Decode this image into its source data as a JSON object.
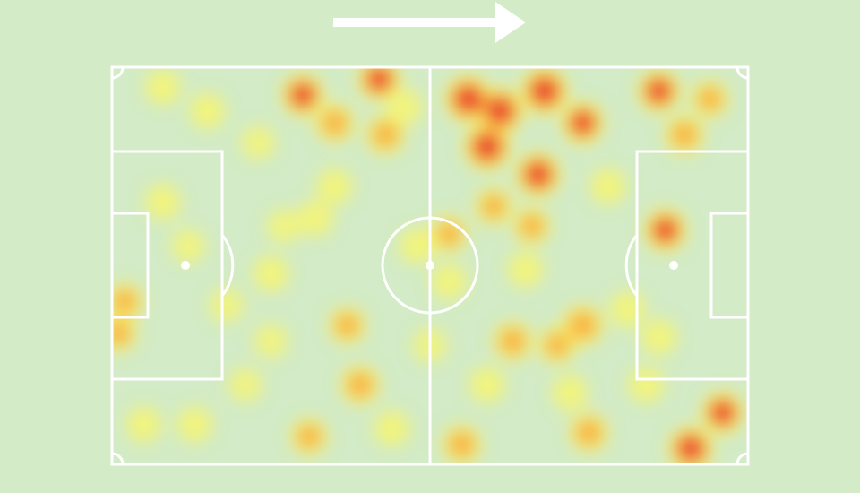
{
  "chart_data": {
    "type": "heatmap",
    "title": "",
    "attack_direction": "right",
    "xlim": [
      0,
      100
    ],
    "ylim": [
      0,
      100
    ],
    "grid": false,
    "colors": {
      "background": "#d3ebc6",
      "lines": "#ffffff",
      "low": "#fff75a",
      "mid": "#f9a33a",
      "high": "#e8352f"
    },
    "points": [
      {
        "x": 30,
        "y": 7,
        "v": 0.8
      },
      {
        "x": 42,
        "y": 3,
        "v": 0.8
      },
      {
        "x": 43,
        "y": 17,
        "v": 0.6
      },
      {
        "x": 35,
        "y": 14,
        "v": 0.6
      },
      {
        "x": 56,
        "y": 8,
        "v": 1.0
      },
      {
        "x": 61,
        "y": 11,
        "v": 1.0
      },
      {
        "x": 59,
        "y": 20,
        "v": 1.0
      },
      {
        "x": 68,
        "y": 6,
        "v": 1.0
      },
      {
        "x": 74,
        "y": 14,
        "v": 0.8
      },
      {
        "x": 67,
        "y": 27,
        "v": 0.9
      },
      {
        "x": 86,
        "y": 6,
        "v": 0.8
      },
      {
        "x": 90,
        "y": 17,
        "v": 0.6
      },
      {
        "x": 87,
        "y": 41,
        "v": 0.8
      },
      {
        "x": 94,
        "y": 8,
        "v": 0.5
      },
      {
        "x": 74,
        "y": 65,
        "v": 0.7
      },
      {
        "x": 63,
        "y": 69,
        "v": 0.6
      },
      {
        "x": 70,
        "y": 70,
        "v": 0.5
      },
      {
        "x": 39,
        "y": 80,
        "v": 0.6
      },
      {
        "x": 37,
        "y": 65,
        "v": 0.5
      },
      {
        "x": 91,
        "y": 96,
        "v": 0.9
      },
      {
        "x": 96,
        "y": 87,
        "v": 0.8
      },
      {
        "x": 55,
        "y": 95,
        "v": 0.6
      },
      {
        "x": 75,
        "y": 92,
        "v": 0.6
      },
      {
        "x": 2,
        "y": 59,
        "v": 0.5
      },
      {
        "x": 1,
        "y": 67,
        "v": 0.5
      },
      {
        "x": 8,
        "y": 34,
        "v": 0.4
      },
      {
        "x": 8,
        "y": 5,
        "v": 0.4
      },
      {
        "x": 25,
        "y": 52,
        "v": 0.4
      },
      {
        "x": 32,
        "y": 38,
        "v": 0.4
      },
      {
        "x": 53,
        "y": 42,
        "v": 0.5
      },
      {
        "x": 53,
        "y": 54,
        "v": 0.4
      },
      {
        "x": 13,
        "y": 90,
        "v": 0.4
      },
      {
        "x": 5,
        "y": 90,
        "v": 0.4
      },
      {
        "x": 31,
        "y": 93,
        "v": 0.5
      },
      {
        "x": 44,
        "y": 91,
        "v": 0.4
      },
      {
        "x": 59,
        "y": 80,
        "v": 0.4
      },
      {
        "x": 72,
        "y": 82,
        "v": 0.4
      },
      {
        "x": 15,
        "y": 11,
        "v": 0.4
      },
      {
        "x": 23,
        "y": 19,
        "v": 0.3
      },
      {
        "x": 35,
        "y": 30,
        "v": 0.4
      },
      {
        "x": 81,
        "y": 61,
        "v": 0.4
      },
      {
        "x": 86,
        "y": 68,
        "v": 0.4
      },
      {
        "x": 65,
        "y": 51,
        "v": 0.4
      },
      {
        "x": 21,
        "y": 80,
        "v": 0.3
      },
      {
        "x": 25,
        "y": 69,
        "v": 0.3
      },
      {
        "x": 48,
        "y": 45,
        "v": 0.4
      },
      {
        "x": 60,
        "y": 35,
        "v": 0.5
      },
      {
        "x": 78,
        "y": 30,
        "v": 0.4
      },
      {
        "x": 46,
        "y": 10,
        "v": 0.4
      },
      {
        "x": 27,
        "y": 40,
        "v": 0.3
      },
      {
        "x": 18,
        "y": 60,
        "v": 0.3
      },
      {
        "x": 84,
        "y": 80,
        "v": 0.4
      },
      {
        "x": 66,
        "y": 40,
        "v": 0.5
      },
      {
        "x": 50,
        "y": 70,
        "v": 0.3
      },
      {
        "x": 12,
        "y": 45,
        "v": 0.3
      }
    ]
  }
}
